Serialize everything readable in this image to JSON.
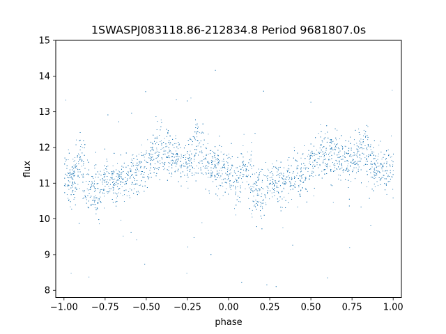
{
  "chart_data": {
    "type": "scatter",
    "title": "1SWASPJ083118.86-212834.8 Period 9681807.0s",
    "xlabel": "phase",
    "ylabel": "flux",
    "xlim": [
      -1.05,
      1.05
    ],
    "ylim": [
      7.8,
      15.0
    ],
    "xticks": [
      -1.0,
      -0.75,
      -0.5,
      -0.25,
      0.0,
      0.25,
      0.5,
      0.75,
      1.0
    ],
    "xtick_labels": [
      "−1.00",
      "−0.75",
      "−0.50",
      "−0.25",
      "0.00",
      "0.25",
      "0.50",
      "0.75",
      "1.00"
    ],
    "yticks": [
      8,
      9,
      10,
      11,
      12,
      13,
      14,
      15
    ],
    "ytick_labels": [
      "8",
      "9",
      "10",
      "11",
      "12",
      "13",
      "14",
      "15"
    ],
    "grid": false,
    "marker_color": "#1f77b4",
    "series": [
      {
        "profile": [
          {
            "x": -1.0,
            "y": 11.3,
            "spread": 0.55
          },
          {
            "x": -0.95,
            "y": 11.0,
            "spread": 0.65
          },
          {
            "x": -0.9,
            "y": 11.6,
            "spread": 0.7
          },
          {
            "x": -0.85,
            "y": 10.8,
            "spread": 0.75
          },
          {
            "x": -0.8,
            "y": 10.7,
            "spread": 0.7
          },
          {
            "x": -0.75,
            "y": 11.1,
            "spread": 0.6
          },
          {
            "x": -0.7,
            "y": 11.0,
            "spread": 0.55
          },
          {
            "x": -0.65,
            "y": 11.1,
            "spread": 0.5
          },
          {
            "x": -0.6,
            "y": 11.2,
            "spread": 0.5
          },
          {
            "x": -0.55,
            "y": 11.3,
            "spread": 0.55
          },
          {
            "x": -0.5,
            "y": 11.6,
            "spread": 0.6
          },
          {
            "x": -0.45,
            "y": 11.8,
            "spread": 0.7
          },
          {
            "x": -0.4,
            "y": 11.9,
            "spread": 0.65
          },
          {
            "x": -0.35,
            "y": 11.8,
            "spread": 0.55
          },
          {
            "x": -0.3,
            "y": 11.7,
            "spread": 0.5
          },
          {
            "x": -0.25,
            "y": 11.6,
            "spread": 0.5
          },
          {
            "x": -0.2,
            "y": 12.0,
            "spread": 0.8
          },
          {
            "x": -0.15,
            "y": 11.7,
            "spread": 0.7
          },
          {
            "x": -0.1,
            "y": 11.4,
            "spread": 0.55
          },
          {
            "x": -0.05,
            "y": 11.4,
            "spread": 0.55
          },
          {
            "x": 0.0,
            "y": 11.3,
            "spread": 0.55
          },
          {
            "x": 0.05,
            "y": 11.0,
            "spread": 0.65
          },
          {
            "x": 0.1,
            "y": 11.6,
            "spread": 0.7
          },
          {
            "x": 0.15,
            "y": 10.8,
            "spread": 0.75
          },
          {
            "x": 0.2,
            "y": 10.7,
            "spread": 0.7
          },
          {
            "x": 0.25,
            "y": 11.1,
            "spread": 0.6
          },
          {
            "x": 0.3,
            "y": 11.0,
            "spread": 0.55
          },
          {
            "x": 0.35,
            "y": 11.1,
            "spread": 0.5
          },
          {
            "x": 0.4,
            "y": 11.2,
            "spread": 0.5
          },
          {
            "x": 0.45,
            "y": 11.3,
            "spread": 0.55
          },
          {
            "x": 0.5,
            "y": 11.6,
            "spread": 0.6
          },
          {
            "x": 0.55,
            "y": 11.8,
            "spread": 0.7
          },
          {
            "x": 0.6,
            "y": 11.9,
            "spread": 0.65
          },
          {
            "x": 0.65,
            "y": 11.8,
            "spread": 0.55
          },
          {
            "x": 0.7,
            "y": 11.7,
            "spread": 0.5
          },
          {
            "x": 0.75,
            "y": 11.6,
            "spread": 0.5
          },
          {
            "x": 0.8,
            "y": 12.0,
            "spread": 0.8
          },
          {
            "x": 0.85,
            "y": 11.7,
            "spread": 0.7
          },
          {
            "x": 0.9,
            "y": 11.4,
            "spread": 0.55
          },
          {
            "x": 0.95,
            "y": 11.4,
            "spread": 0.55
          },
          {
            "x": 1.0,
            "y": 11.3,
            "spread": 0.55
          }
        ]
      }
    ]
  }
}
